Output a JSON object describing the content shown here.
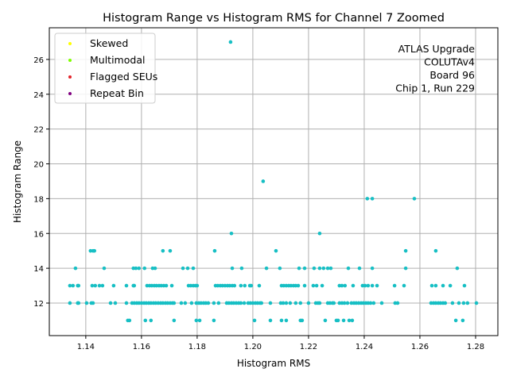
{
  "chart_data": {
    "type": "scatter",
    "title": "Histogram Range vs Histogram RMS for Channel 7 Zoomed",
    "xlabel": "Histogram RMS",
    "ylabel": "Histogram Range",
    "xlim": [
      1.1269,
      1.288
    ],
    "ylim": [
      10.13,
      27.82
    ],
    "xticks": [
      "1.14",
      "1.16",
      "1.18",
      "1.20",
      "1.22",
      "1.24",
      "1.26",
      "1.28"
    ],
    "yticks": [
      "12",
      "14",
      "16",
      "18",
      "20",
      "22",
      "24",
      "26"
    ],
    "grid": true,
    "legend_placement": "top-left",
    "legend": [
      {
        "label": "Skewed",
        "color": "#ffff00"
      },
      {
        "label": "Multimodal",
        "color": "#7fff00"
      },
      {
        "label": "Flagged SEUs",
        "color": "#e3242b"
      },
      {
        "label": "Repeat Bin",
        "color": "#800080"
      }
    ],
    "annotation": [
      "ATLAS Upgrade",
      "COLUTAv4",
      "Board 96",
      "Chip 1, Run 229"
    ],
    "point_color": "#17bfc4",
    "rows": [
      {
        "y": 11,
        "x": [
          1.1551,
          1.1557,
          1.1614,
          1.1634,
          1.1717,
          1.1797,
          1.1809,
          1.186,
          1.2006,
          1.2063,
          1.2103,
          1.212,
          1.2171,
          1.2177,
          1.226,
          1.23,
          1.2306,
          1.2326,
          1.2346,
          1.2357,
          1.2729,
          1.2754
        ]
      },
      {
        "y": 12,
        "x": [
          1.1343,
          1.1371,
          1.1374,
          1.1403,
          1.142,
          1.1426,
          1.1489,
          1.1506,
          1.1546,
          1.1566,
          1.1574,
          1.1583,
          1.1591,
          1.16,
          1.1609,
          1.1617,
          1.1626,
          1.1634,
          1.1643,
          1.1651,
          1.166,
          1.1669,
          1.1677,
          1.1686,
          1.1694,
          1.1703,
          1.1711,
          1.1717,
          1.1743,
          1.1757,
          1.178,
          1.1797,
          1.1806,
          1.1814,
          1.1823,
          1.1831,
          1.184,
          1.186,
          1.1877,
          1.1906,
          1.1914,
          1.1923,
          1.1931,
          1.194,
          1.1949,
          1.1957,
          1.1969,
          1.1983,
          1.1991,
          1.2,
          1.2009,
          1.2017,
          1.2026,
          1.2031,
          1.2063,
          1.21,
          1.2109,
          1.212,
          1.2134,
          1.2154,
          1.2171,
          1.22,
          1.2226,
          1.2234,
          1.224,
          1.2269,
          1.2277,
          1.2286,
          1.2291,
          1.2311,
          1.232,
          1.2329,
          1.234,
          1.2354,
          1.2363,
          1.2371,
          1.238,
          1.2389,
          1.2397,
          1.2406,
          1.2414,
          1.2423,
          1.2434,
          1.2463,
          1.2511,
          1.252,
          1.264,
          1.2649,
          1.2657,
          1.2666,
          1.2674,
          1.2683,
          1.2691,
          1.2717,
          1.274,
          1.2757,
          1.2771,
          1.2803
        ]
      },
      {
        "y": 13,
        "x": [
          1.1343,
          1.1354,
          1.1371,
          1.1374,
          1.1423,
          1.1434,
          1.1449,
          1.146,
          1.15,
          1.1546,
          1.1571,
          1.1574,
          1.162,
          1.1629,
          1.1637,
          1.1646,
          1.1654,
          1.1663,
          1.1671,
          1.168,
          1.1689,
          1.1709,
          1.1769,
          1.1777,
          1.1786,
          1.1794,
          1.18,
          1.1866,
          1.1874,
          1.1883,
          1.1891,
          1.19,
          1.1909,
          1.1917,
          1.1926,
          1.1934,
          1.1957,
          1.1971,
          1.1989,
          1.1994,
          1.2023,
          1.2103,
          1.2111,
          1.212,
          1.2129,
          1.2137,
          1.2146,
          1.2154,
          1.2163,
          1.2186,
          1.2217,
          1.2229,
          1.2249,
          1.2311,
          1.232,
          1.2331,
          1.236,
          1.2394,
          1.2403,
          1.2414,
          1.2429,
          1.2446,
          1.2509,
          1.2543,
          1.2643,
          1.2657,
          1.2683,
          1.2709,
          1.276
        ]
      },
      {
        "y": 14,
        "x": [
          1.1363,
          1.1466,
          1.1571,
          1.158,
          1.1591,
          1.1611,
          1.164,
          1.1649,
          1.1749,
          1.1766,
          1.1786,
          1.1926,
          1.196,
          1.2049,
          1.2097,
          1.2166,
          1.2186,
          1.222,
          1.224,
          1.2254,
          1.2269,
          1.228,
          1.2343,
          1.2383,
          1.2429,
          1.2549,
          1.2734
        ]
      },
      {
        "y": 15,
        "x": [
          1.1417,
          1.1426,
          1.1431,
          1.1677,
          1.1703,
          1.1863,
          1.2083,
          1.2549,
          1.2657
        ]
      },
      {
        "y": 16,
        "x": [
          1.1923,
          1.224
        ]
      },
      {
        "y": 18,
        "x": [
          1.2411,
          1.2429,
          1.258
        ]
      },
      {
        "y": 19,
        "x": [
          1.2037
        ]
      },
      {
        "y": 27,
        "x": [
          1.192
        ]
      }
    ]
  }
}
